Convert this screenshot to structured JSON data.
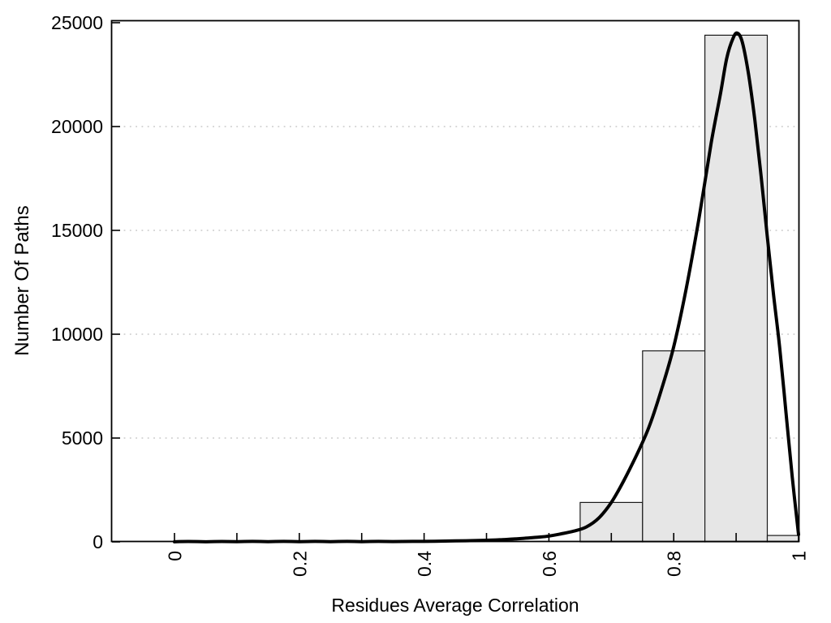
{
  "chart_data": {
    "type": "histogram",
    "title": "",
    "xlabel": "Residues Average Correlation",
    "ylabel": "Number Of Paths",
    "xlim": [
      0,
      1
    ],
    "ylim": [
      0,
      25000
    ],
    "legend": "none",
    "grid": "horizontal-dotted",
    "x_ticks": [
      0,
      0.1,
      0.2,
      0.3,
      0.4,
      0.5,
      0.6,
      0.7,
      0.8,
      0.9,
      1.0
    ],
    "x_tick_labels": [
      {
        "v": 0,
        "label": "0"
      },
      {
        "v": 0.2,
        "label": "0.2"
      },
      {
        "v": 0.4,
        "label": "0.4"
      },
      {
        "v": 0.6,
        "label": "0.6"
      },
      {
        "v": 0.8,
        "label": "0.8"
      },
      {
        "v": 1.0,
        "label": "1"
      }
    ],
    "y_ticks": [
      {
        "v": 0,
        "label": "0"
      },
      {
        "v": 5000,
        "label": "5000"
      },
      {
        "v": 10000,
        "label": "10000"
      },
      {
        "v": 15000,
        "label": "15000"
      },
      {
        "v": 20000,
        "label": "20000"
      },
      {
        "v": 25000,
        "label": "25000"
      }
    ],
    "y_gridlines": [
      5000,
      10000,
      15000,
      20000
    ],
    "bars": [
      {
        "x0": 0.65,
        "x1": 0.75,
        "count": 1900
      },
      {
        "x0": 0.75,
        "x1": 0.85,
        "count": 9200
      },
      {
        "x0": 0.85,
        "x1": 0.95,
        "count": 24400
      },
      {
        "x0": 0.95,
        "x1": 1.0,
        "count": 310
      }
    ],
    "density_curve": [
      [
        0.0,
        5
      ],
      [
        0.05,
        5
      ],
      [
        0.1,
        6
      ],
      [
        0.15,
        6
      ],
      [
        0.2,
        7
      ],
      [
        0.25,
        9
      ],
      [
        0.3,
        12
      ],
      [
        0.35,
        16
      ],
      [
        0.4,
        25
      ],
      [
        0.45,
        45
      ],
      [
        0.5,
        80
      ],
      [
        0.53,
        115
      ],
      [
        0.56,
        170
      ],
      [
        0.58,
        220
      ],
      [
        0.6,
        280
      ],
      [
        0.62,
        390
      ],
      [
        0.64,
        520
      ],
      [
        0.66,
        720
      ],
      [
        0.68,
        1150
      ],
      [
        0.7,
        1900
      ],
      [
        0.72,
        2950
      ],
      [
        0.74,
        4150
      ],
      [
        0.76,
        5500
      ],
      [
        0.78,
        7300
      ],
      [
        0.8,
        9400
      ],
      [
        0.82,
        12200
      ],
      [
        0.84,
        15500
      ],
      [
        0.86,
        19200
      ],
      [
        0.875,
        21600
      ],
      [
        0.885,
        23300
      ],
      [
        0.895,
        24250
      ],
      [
        0.902,
        24500
      ],
      [
        0.91,
        24050
      ],
      [
        0.92,
        22500
      ],
      [
        0.93,
        20300
      ],
      [
        0.94,
        17600
      ],
      [
        0.95,
        14700
      ],
      [
        0.96,
        11900
      ],
      [
        0.97,
        9300
      ],
      [
        0.98,
        6200
      ],
      [
        0.99,
        3100
      ],
      [
        1.0,
        350
      ]
    ],
    "colors": {
      "bar_fill": "#e6e6e6",
      "bar_stroke": "#1a1a1a",
      "curve": "#000000",
      "grid": "#bdbdbd",
      "axis": "#000000",
      "text": "#000000",
      "background": "#ffffff"
    }
  }
}
